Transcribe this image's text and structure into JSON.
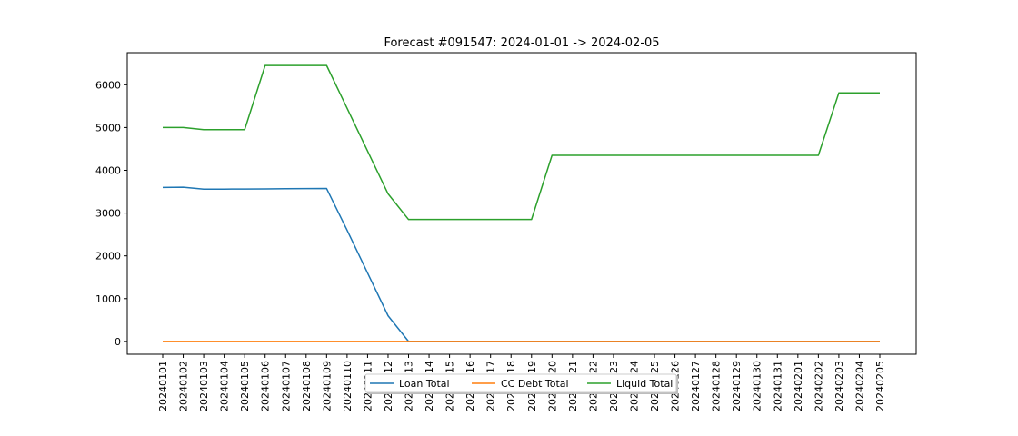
{
  "chart_data": {
    "type": "line",
    "title": "Forecast #091547: 2024-01-01 -> 2024-02-05",
    "xlabel": "",
    "ylabel": "",
    "ylim": [
      -300,
      6750
    ],
    "yticks": [
      0,
      1000,
      2000,
      3000,
      4000,
      5000,
      6000
    ],
    "grid": false,
    "legend_position": "bottom-center",
    "categories": [
      "20240101",
      "20240102",
      "20240103",
      "20240104",
      "20240105",
      "20240106",
      "20240107",
      "20240108",
      "20240109",
      "20240110",
      "20240111",
      "20240112",
      "20240113",
      "20240114",
      "20240115",
      "20240116",
      "20240117",
      "20240118",
      "20240119",
      "20240120",
      "20240121",
      "20240122",
      "20240123",
      "20240124",
      "20240125",
      "20240126",
      "20240127",
      "20240128",
      "20240129",
      "20240130",
      "20240131",
      "20240201",
      "20240202",
      "20240203",
      "20240204",
      "20240205"
    ],
    "series": [
      {
        "name": "Loan Total",
        "color": "#1f77b4",
        "values": [
          3600,
          3605,
          3560,
          3560,
          3563,
          3566,
          3569,
          3572,
          3575,
          2600,
          1600,
          600,
          0,
          0,
          0,
          0,
          0,
          0,
          0,
          0,
          0,
          0,
          0,
          0,
          0,
          0,
          0,
          0,
          0,
          0,
          0,
          0,
          0,
          0,
          0,
          0
        ]
      },
      {
        "name": "CC Debt Total",
        "color": "#ff7f0e",
        "values": [
          0,
          0,
          0,
          0,
          0,
          0,
          0,
          0,
          0,
          0,
          0,
          0,
          0,
          0,
          0,
          0,
          0,
          0,
          0,
          0,
          0,
          0,
          0,
          0,
          0,
          0,
          0,
          0,
          0,
          0,
          0,
          0,
          0,
          0,
          0,
          0
        ]
      },
      {
        "name": "Liquid Total",
        "color": "#2ca02c",
        "values": [
          5000,
          5000,
          4950,
          4950,
          4950,
          6450,
          6450,
          6450,
          6450,
          5450,
          4450,
          3450,
          2850,
          2850,
          2850,
          2850,
          2850,
          2850,
          2850,
          4350,
          4350,
          4350,
          4350,
          4350,
          4350,
          4350,
          4350,
          4350,
          4350,
          4350,
          4350,
          4350,
          4350,
          5810,
          5810,
          5810
        ]
      }
    ]
  }
}
